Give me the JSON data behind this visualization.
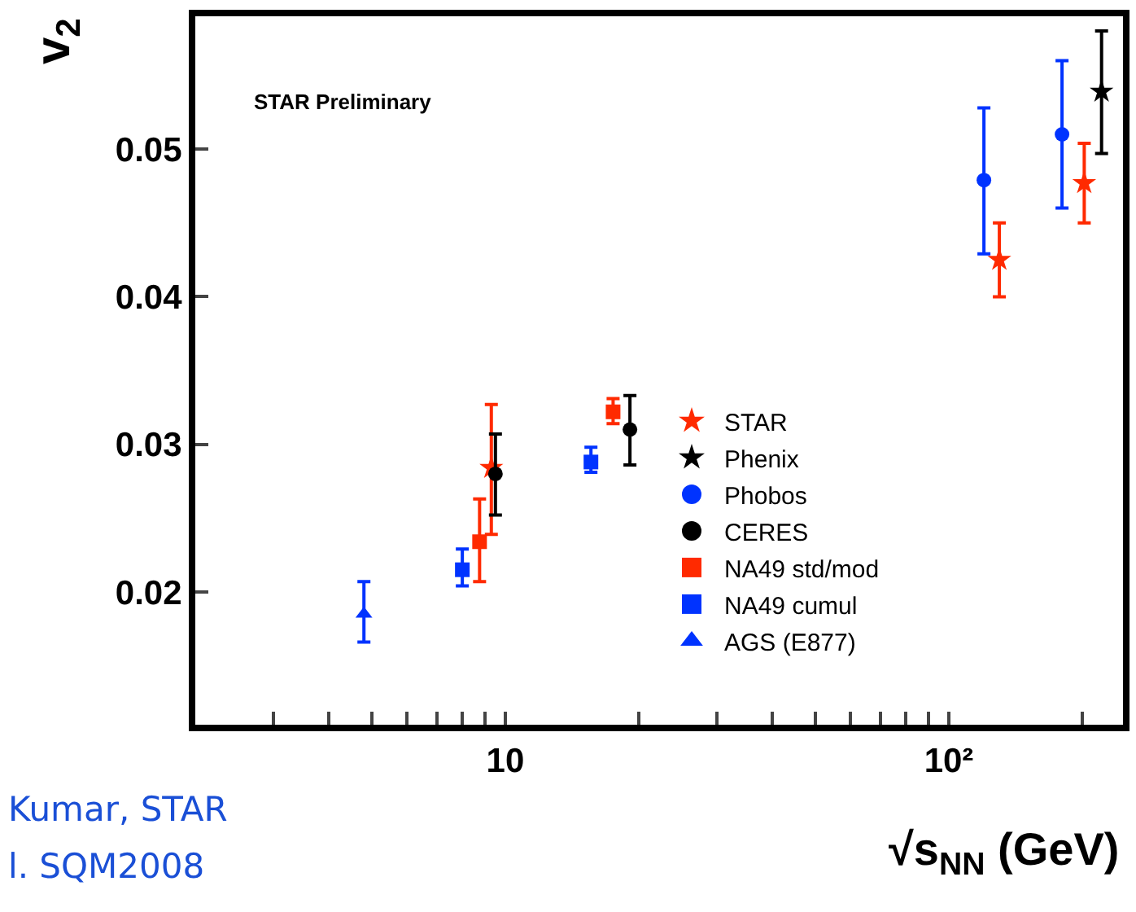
{
  "chart_data": {
    "type": "scatter",
    "xlabel": "√s$_{NN}$ (GeV)",
    "ylabel": "v$_{2}$",
    "annotations": [
      "STAR Preliminary",
      "Kumar, STAR",
      "l. SQM2008"
    ],
    "log": "x",
    "xlim": [
      2.0,
      247
    ],
    "ylim": [
      0.011,
      0.059
    ],
    "xticks": [
      {
        "value": 3,
        "label": null
      },
      {
        "value": 4,
        "label": null
      },
      {
        "value": 5,
        "label": null
      },
      {
        "value": 6,
        "label": null
      },
      {
        "value": 7,
        "label": null
      },
      {
        "value": 8,
        "label": null
      },
      {
        "value": 9,
        "label": null
      },
      10,
      {
        "value": 20,
        "label": null
      },
      {
        "value": 30,
        "label": null
      },
      {
        "value": 40,
        "label": null
      },
      {
        "value": 50,
        "label": null
      },
      {
        "value": 60,
        "label": null
      },
      {
        "value": 70,
        "label": null
      },
      {
        "value": 80,
        "label": null
      },
      {
        "value": 90,
        "label": null
      },
      {
        "value": 100,
        "label": "10²"
      },
      {
        "value": 200,
        "label": null
      }
    ],
    "yticks": [
      0.02,
      0.03,
      0.04,
      0.05
    ],
    "legend": "bottom right",
    "series": [
      {
        "name": "STAR",
        "color": "#ff2a00",
        "marker": "star",
        "x": [
          9.3,
          130,
          202
        ],
        "values": [
          0.0284,
          0.0425,
          0.0477
        ],
        "errors": [
          [
            0.0239,
            0.0327
          ],
          [
            0.04,
            0.045
          ],
          [
            0.045,
            0.0504
          ]
        ]
      },
      {
        "name": "Phenix",
        "color": "#000000",
        "marker": "star",
        "x": [
          221
        ],
        "values": [
          0.0539
        ],
        "errors": [
          [
            0.0497,
            0.058
          ]
        ]
      },
      {
        "name": "Phobos",
        "color": "#0033ff",
        "marker": "circle",
        "x": [
          120,
          180
        ],
        "values": [
          0.0479,
          0.051
        ],
        "errors": [
          [
            0.0429,
            0.0528
          ],
          [
            0.046,
            0.056
          ]
        ]
      },
      {
        "name": "CERES",
        "color": "#000000",
        "marker": "circle",
        "x": [
          9.5,
          19.1
        ],
        "values": [
          0.028,
          0.031
        ],
        "errors": [
          [
            0.0252,
            0.0307
          ],
          [
            0.0286,
            0.0333
          ]
        ]
      },
      {
        "name": "NA49 std/mod",
        "color": "#ff2a00",
        "marker": "square",
        "x": [
          8.75,
          17.5
        ],
        "values": [
          0.0234,
          0.0322
        ],
        "errors": [
          [
            0.0207,
            0.0263
          ],
          [
            0.0314,
            0.0331
          ]
        ]
      },
      {
        "name": "NA49 cumul",
        "color": "#0033ff",
        "marker": "square",
        "x": [
          8.0,
          15.6
        ],
        "values": [
          0.0215,
          0.0288
        ],
        "errors": [
          [
            0.0204,
            0.0229
          ],
          [
            0.0281,
            0.0298
          ]
        ]
      },
      {
        "name": "AGS (E877)",
        "color": "#0033ff",
        "marker": "triangle",
        "x": [
          4.8
        ],
        "values": [
          0.0185
        ],
        "errors": [
          [
            0.0166,
            0.0207
          ]
        ]
      }
    ]
  }
}
